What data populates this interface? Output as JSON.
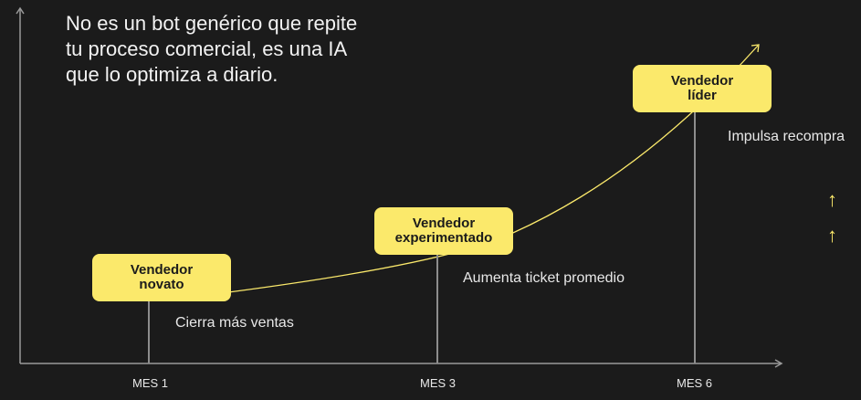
{
  "headline": {
    "line1": "No es un bot genérico que repite",
    "line2": "tu proceso comercial, es una IA",
    "line3": "que lo optimiza a diario."
  },
  "stages": [
    {
      "line1": "Vendedor",
      "line2": "novato",
      "note": "Cierra más ventas",
      "tick": "MES 1"
    },
    {
      "line1": "Vendedor",
      "line2": "experimentado",
      "note": "Aumenta ticket promedio",
      "tick": "MES 3"
    },
    {
      "line1": "Vendedor",
      "line2": "líder",
      "note": "Impulsa recompra",
      "tick": "MES 6"
    }
  ],
  "colors": {
    "background": "#1b1b1b",
    "accent": "#fbe96b",
    "axis": "#9a9a9a"
  },
  "icons": [
    "arrow-up-icon",
    "arrow-up-icon"
  ]
}
